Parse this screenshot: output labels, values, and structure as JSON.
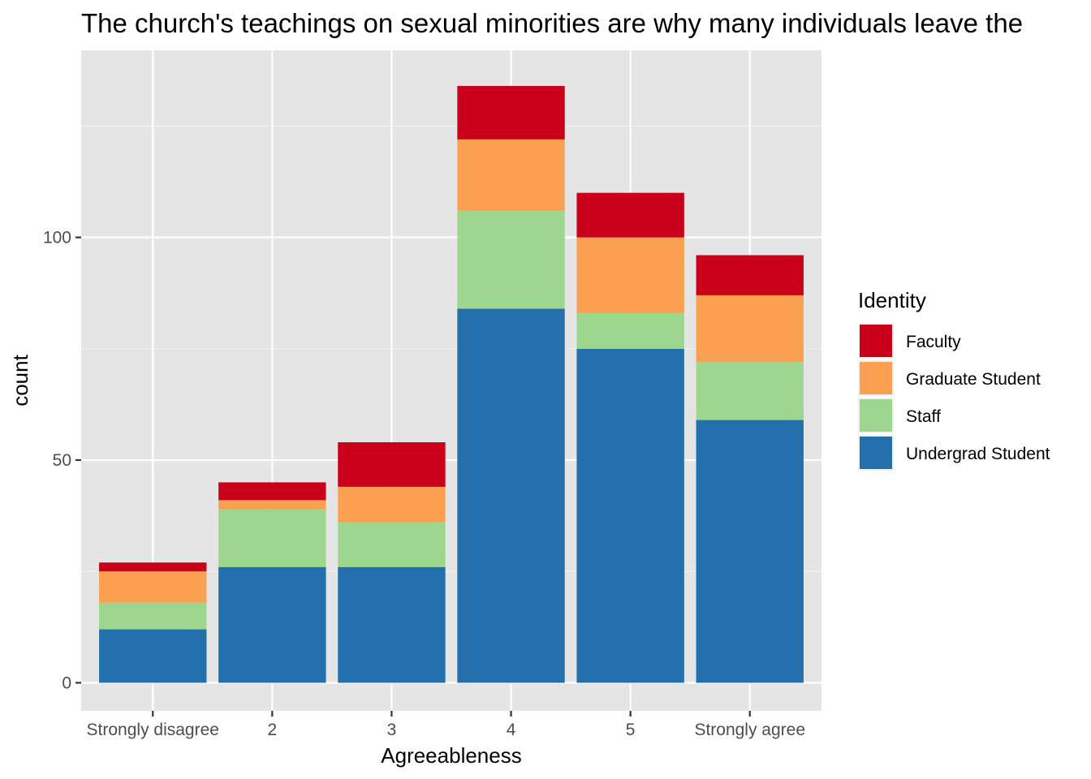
{
  "chart_data": {
    "type": "bar",
    "stacked": true,
    "title": "The church's teachings on sexual minorities are why many individuals leave the",
    "xlabel": "Agreeableness",
    "ylabel": "count",
    "categories": [
      "Strongly disagree",
      "2",
      "3",
      "4",
      "5",
      "Strongly agree"
    ],
    "yticks": [
      0,
      50,
      100
    ],
    "ylim": [
      -6.3,
      142
    ],
    "grid": true,
    "legend": {
      "title": "Identity",
      "placement": "right"
    },
    "series": [
      {
        "name": "Undergrad Student",
        "color": "#2470ac",
        "values": [
          12,
          26,
          26,
          84,
          75,
          59
        ]
      },
      {
        "name": "Staff",
        "color": "#9dd78f",
        "values": [
          6,
          13,
          10,
          22,
          8,
          13
        ]
      },
      {
        "name": "Graduate Student",
        "color": "#fba050",
        "values": [
          7,
          2,
          8,
          16,
          17,
          15
        ]
      },
      {
        "name": "Faculty",
        "color": "#cb001b",
        "values": [
          2,
          4,
          10,
          12,
          10,
          9
        ]
      }
    ],
    "legend_order": [
      "Faculty",
      "Graduate Student",
      "Staff",
      "Undergrad Student"
    ]
  }
}
